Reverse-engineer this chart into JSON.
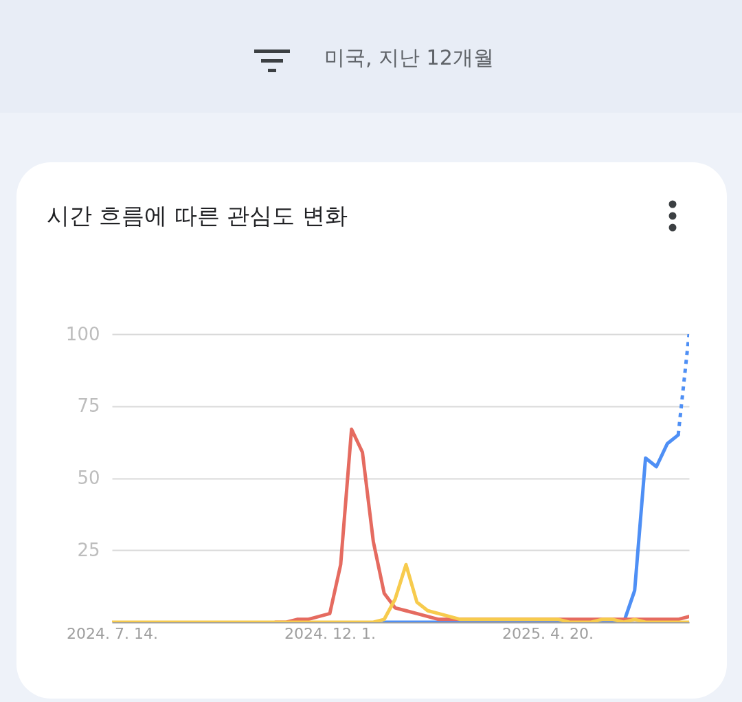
{
  "chart_data": {
    "type": "line",
    "title": "시간 흐름에 따른 관심도 변화",
    "subtitle": "미국, 지난 12개월",
    "x": [
      "2024-07-14",
      "2024-07-21",
      "2024-07-28",
      "2024-08-04",
      "2024-08-11",
      "2024-08-18",
      "2024-08-25",
      "2024-09-01",
      "2024-09-08",
      "2024-09-15",
      "2024-09-22",
      "2024-09-29",
      "2024-10-06",
      "2024-10-13",
      "2024-10-20",
      "2024-10-27",
      "2024-11-03",
      "2024-11-10",
      "2024-11-17",
      "2024-11-24",
      "2024-12-01",
      "2024-12-08",
      "2024-12-15",
      "2024-12-22",
      "2024-12-29",
      "2025-01-05",
      "2025-01-12",
      "2025-01-19",
      "2025-01-26",
      "2025-02-02",
      "2025-02-09",
      "2025-02-16",
      "2025-02-23",
      "2025-03-02",
      "2025-03-09",
      "2025-03-16",
      "2025-03-23",
      "2025-03-30",
      "2025-04-06",
      "2025-04-13",
      "2025-04-20",
      "2025-04-27",
      "2025-05-04",
      "2025-05-11",
      "2025-05-18",
      "2025-05-25",
      "2025-06-01",
      "2025-06-08",
      "2025-06-15",
      "2025-06-22",
      "2025-06-29",
      "2025-07-06",
      "2025-07-13",
      "2025-07-20"
    ],
    "series": [
      {
        "color": "#4e8ff5",
        "values": [
          null,
          null,
          null,
          null,
          null,
          null,
          null,
          null,
          null,
          null,
          null,
          null,
          null,
          null,
          null,
          null,
          null,
          null,
          null,
          null,
          null,
          null,
          null,
          null,
          null,
          0,
          0,
          0,
          0,
          0,
          0,
          0,
          0,
          0,
          0,
          0,
          0,
          0,
          0,
          0,
          0,
          0,
          0,
          0,
          0,
          0,
          0,
          0,
          11,
          57,
          54,
          62,
          65,
          null
        ]
      },
      {
        "color": "#e56b60",
        "values": [
          null,
          null,
          null,
          null,
          null,
          null,
          null,
          null,
          null,
          null,
          null,
          null,
          null,
          null,
          null,
          0,
          0,
          1,
          1,
          2,
          3,
          20,
          67,
          59,
          28,
          10,
          5,
          4,
          3,
          2,
          1,
          1,
          1,
          1,
          1,
          1,
          1,
          1,
          1,
          1,
          1,
          1,
          1,
          1,
          1,
          1,
          1,
          1,
          1,
          1,
          1,
          1,
          1,
          2
        ]
      },
      {
        "color": "#f7cb4d",
        "values": [
          0,
          0,
          0,
          0,
          0,
          0,
          0,
          0,
          0,
          0,
          0,
          0,
          0,
          0,
          0,
          0,
          0,
          0,
          0,
          0,
          0,
          0,
          0,
          0,
          0,
          1,
          8,
          20,
          7,
          4,
          3,
          2,
          1,
          1,
          1,
          1,
          1,
          1,
          1,
          1,
          1,
          1,
          0,
          0,
          0,
          1,
          1,
          0,
          1,
          0,
          0,
          0,
          0,
          0
        ]
      },
      {
        "color": "#4e8ff5",
        "line_style": "dotted",
        "values": [
          null,
          null,
          null,
          null,
          null,
          null,
          null,
          null,
          null,
          null,
          null,
          null,
          null,
          null,
          null,
          null,
          null,
          null,
          null,
          null,
          null,
          null,
          null,
          null,
          null,
          null,
          null,
          null,
          null,
          null,
          null,
          null,
          null,
          null,
          null,
          null,
          null,
          null,
          null,
          null,
          null,
          null,
          null,
          null,
          null,
          null,
          null,
          null,
          null,
          null,
          null,
          null,
          65,
          100
        ]
      }
    ],
    "xlim": [
      "2024-07-14",
      "2025-07-20"
    ],
    "xticks": [
      {
        "value": "2024-07-14",
        "label": "2024. 7. 14."
      },
      {
        "value": "2024-12-01",
        "label": "2024. 12. 1."
      },
      {
        "value": "2025-04-20",
        "label": "2025. 4. 20."
      }
    ],
    "ylim": [
      0,
      100
    ],
    "yticks": [
      {
        "value": 0,
        "label": null
      },
      25,
      50,
      75,
      100
    ],
    "grid": "y",
    "marker": "none",
    "line_style": "solid"
  }
}
